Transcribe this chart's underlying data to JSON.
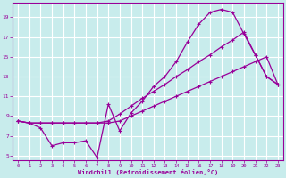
{
  "bg_color": "#c8ecec",
  "line_color": "#990099",
  "grid_color": "#ffffff",
  "xlabel": "Windchill (Refroidissement éolien,°C)",
  "xlabel_color": "#990099",
  "tick_color": "#990099",
  "xlim": [
    -0.5,
    23.5
  ],
  "ylim": [
    4.5,
    20.5
  ],
  "yticks": [
    5,
    7,
    9,
    11,
    13,
    15,
    17,
    19
  ],
  "xticks": [
    0,
    1,
    2,
    3,
    4,
    5,
    6,
    7,
    8,
    9,
    10,
    11,
    12,
    13,
    14,
    15,
    16,
    17,
    18,
    19,
    20,
    21,
    22,
    23
  ],
  "line1_x": [
    0,
    1,
    2,
    3,
    4,
    5,
    6,
    7,
    8,
    9,
    10,
    11,
    12,
    13,
    14,
    15,
    16,
    17,
    18,
    19,
    20,
    21,
    22,
    23
  ],
  "line1_y": [
    8.5,
    8.3,
    7.8,
    6.0,
    6.3,
    6.3,
    6.5,
    4.8,
    10.2,
    7.5,
    9.3,
    10.5,
    12.0,
    13.0,
    14.5,
    16.5,
    18.3,
    19.5,
    19.8,
    19.5,
    17.3,
    15.2,
    13.0,
    12.2
  ],
  "line2_x": [
    0,
    1,
    2,
    3,
    4,
    5,
    6,
    7,
    8,
    9,
    10,
    11,
    12,
    13,
    14,
    15,
    16,
    17,
    18,
    19,
    20,
    21,
    22,
    23
  ],
  "line2_y": [
    8.5,
    8.3,
    8.3,
    8.3,
    8.3,
    8.3,
    8.3,
    8.3,
    8.3,
    8.5,
    9.0,
    9.5,
    10.0,
    10.5,
    11.0,
    11.5,
    12.0,
    12.5,
    13.0,
    13.5,
    14.0,
    14.5,
    15.0,
    12.2
  ],
  "line3_x": [
    0,
    1,
    2,
    3,
    4,
    5,
    6,
    7,
    8,
    9,
    10,
    11,
    12,
    13,
    14,
    15,
    16,
    17,
    18,
    19,
    20,
    21,
    22,
    23
  ],
  "line3_y": [
    8.5,
    8.3,
    8.3,
    8.3,
    8.3,
    8.3,
    8.3,
    8.3,
    8.5,
    9.2,
    10.0,
    10.8,
    11.5,
    12.2,
    13.0,
    13.7,
    14.5,
    15.2,
    16.0,
    16.7,
    17.5,
    15.2,
    13.0,
    12.2
  ]
}
